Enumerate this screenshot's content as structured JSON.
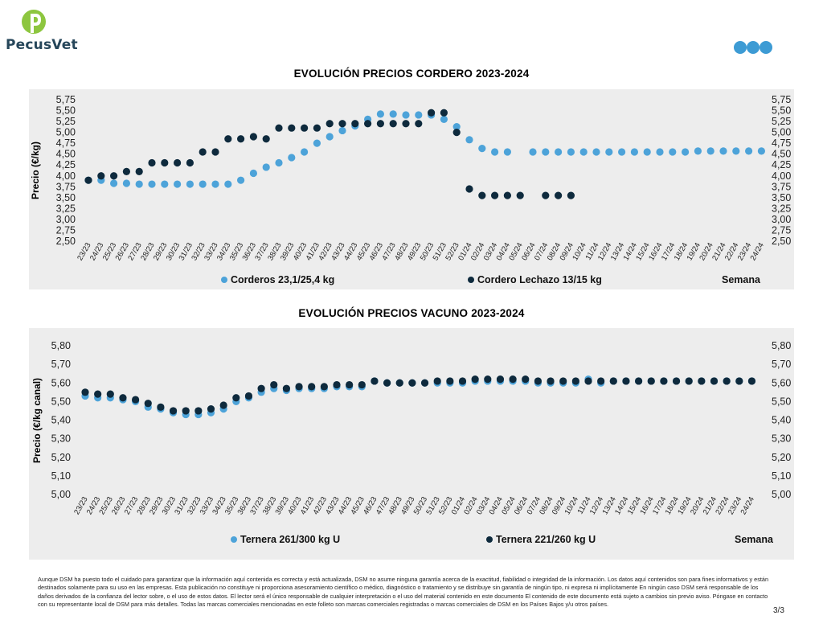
{
  "header": {
    "brand": "PecusVet",
    "colors": {
      "logo_green": "#8dc63f",
      "logo_text": "#26465a",
      "dot_blue": "#3d9bd4"
    }
  },
  "chart_data": [
    {
      "type": "scatter",
      "title": "EVOLUCIÓN PRECIOS CORDERO 2023-2024",
      "ylabel": "Precio (€/kg)",
      "xlabel": "Semana",
      "ylim": [
        2.5,
        5.75
      ],
      "yticks": [
        "5,75",
        "5,50",
        "5,25",
        "5,00",
        "4,75",
        "4,50",
        "4,25",
        "4,00",
        "3,75",
        "3,50",
        "3,25",
        "3,00",
        "2,75",
        "2,50"
      ],
      "ytick_values": [
        5.75,
        5.5,
        5.25,
        5.0,
        4.75,
        4.5,
        4.25,
        4.0,
        3.75,
        3.5,
        3.25,
        3.0,
        2.75,
        2.5
      ],
      "secondary_y_axis": true,
      "grid": false,
      "legend_position": "bottom",
      "categories": [
        "23/23",
        "24/23",
        "25/23",
        "26/23",
        "27/23",
        "28/23",
        "29/23",
        "30/23",
        "31/23",
        "32/23",
        "33/23",
        "34/23",
        "35/23",
        "36/23",
        "37/23",
        "38/23",
        "39/23",
        "40/23",
        "41/23",
        "42/23",
        "43/23",
        "44/23",
        "45/23",
        "46/23",
        "47/23",
        "48/23",
        "49/23",
        "50/23",
        "51/23",
        "52/23",
        "01/24",
        "02/24",
        "03/24",
        "04/24",
        "05/24",
        "06/24",
        "07/24",
        "08/24",
        "09/24",
        "10/24",
        "11/24",
        "12/24",
        "13/24",
        "14/24",
        "15/24",
        "16/24",
        "17/24",
        "18/24",
        "19/24",
        "20/24",
        "21/24",
        "22/24",
        "23/24",
        "24/24"
      ],
      "series": [
        {
          "name": "Corderos 23,1/25,4 kg",
          "color": "#4da3d9",
          "values": [
            3.9,
            3.9,
            3.83,
            3.83,
            3.81,
            3.81,
            3.81,
            3.81,
            3.81,
            3.81,
            3.81,
            3.81,
            3.9,
            4.06,
            4.2,
            4.3,
            4.42,
            4.55,
            4.75,
            4.9,
            5.04,
            5.15,
            5.3,
            5.42,
            5.42,
            5.4,
            5.4,
            5.4,
            5.3,
            5.13,
            4.83,
            4.63,
            4.55,
            4.55,
            null,
            4.55,
            4.55,
            4.55,
            4.55,
            4.55,
            4.55,
            4.55,
            4.55,
            4.55,
            4.55,
            4.55,
            4.55,
            4.55,
            4.57,
            4.57,
            4.57,
            4.57,
            4.57,
            4.57
          ]
        },
        {
          "name": "Cordero Lechazo 13/15 kg",
          "color": "#0e2a3d",
          "values": [
            3.9,
            4.0,
            4.0,
            4.1,
            4.1,
            4.3,
            4.3,
            4.3,
            4.3,
            4.55,
            4.55,
            4.85,
            4.85,
            4.9,
            4.85,
            5.1,
            5.1,
            5.1,
            5.1,
            5.2,
            5.2,
            5.2,
            5.2,
            5.2,
            5.2,
            5.2,
            5.2,
            5.45,
            5.45,
            5.0,
            3.7,
            3.55,
            3.55,
            3.55,
            3.55,
            null,
            3.55,
            3.55,
            3.55,
            null,
            null,
            null,
            null,
            null,
            null,
            null,
            null,
            null,
            null,
            null,
            null,
            null,
            null,
            null
          ]
        }
      ]
    },
    {
      "type": "scatter",
      "title": "EVOLUCIÓN PRECIOS VACUNO 2023-2024",
      "ylabel": "Precio (€/kg canal)",
      "xlabel": "Semana",
      "ylim": [
        5.0,
        5.8
      ],
      "yticks": [
        "5,80",
        "5,70",
        "5,60",
        "5,50",
        "5,40",
        "5,30",
        "5,20",
        "5,10",
        "5,00"
      ],
      "ytick_values": [
        5.8,
        5.7,
        5.6,
        5.5,
        5.4,
        5.3,
        5.2,
        5.1,
        5.0
      ],
      "secondary_y_axis": true,
      "grid": false,
      "legend_position": "bottom",
      "categories": [
        "23/23",
        "24/23",
        "25/23",
        "26/23",
        "27/23",
        "28/23",
        "29/23",
        "30/23",
        "31/23",
        "32/23",
        "33/23",
        "34/23",
        "35/23",
        "36/23",
        "37/23",
        "38/23",
        "39/23",
        "40/23",
        "41/23",
        "42/23",
        "43/23",
        "44/23",
        "45/23",
        "46/23",
        "47/23",
        "48/23",
        "49/23",
        "50/23",
        "51/23",
        "52/23",
        "01/24",
        "02/24",
        "03/24",
        "04/24",
        "05/24",
        "06/24",
        "07/24",
        "08/24",
        "09/24",
        "10/24",
        "11/24",
        "12/24",
        "13/24",
        "14/24",
        "15/24",
        "16/24",
        "17/24",
        "18/24",
        "19/24",
        "20/24",
        "21/24",
        "22/24",
        "23/24",
        "24/24"
      ],
      "series": [
        {
          "name": "Ternera 261/300 kg U",
          "color": "#4da3d9",
          "values": [
            5.53,
            5.52,
            5.52,
            5.51,
            5.5,
            5.47,
            5.46,
            5.44,
            5.43,
            5.43,
            5.44,
            5.46,
            5.5,
            5.52,
            5.55,
            5.57,
            5.56,
            5.57,
            5.57,
            5.57,
            5.58,
            5.58,
            5.58,
            5.61,
            5.6,
            5.6,
            5.6,
            5.6,
            5.6,
            5.6,
            5.6,
            5.61,
            5.61,
            5.61,
            5.61,
            5.61,
            5.6,
            5.6,
            5.6,
            5.6,
            5.62,
            5.6,
            5.61,
            5.61,
            5.61,
            5.61,
            5.61,
            5.61,
            5.61,
            5.61,
            5.61,
            5.61,
            5.61,
            5.61
          ]
        },
        {
          "name": "Ternera 221/260 kg U",
          "color": "#0e2a3d",
          "values": [
            5.55,
            5.54,
            5.54,
            5.52,
            5.51,
            5.49,
            5.47,
            5.45,
            5.45,
            5.45,
            5.46,
            5.48,
            5.52,
            5.53,
            5.57,
            5.59,
            5.57,
            5.58,
            5.58,
            5.58,
            5.59,
            5.59,
            5.59,
            5.61,
            5.6,
            5.6,
            5.6,
            5.6,
            5.61,
            5.61,
            5.61,
            5.62,
            5.62,
            5.62,
            5.62,
            5.62,
            5.61,
            5.61,
            5.61,
            5.61,
            5.61,
            5.61,
            5.61,
            5.61,
            5.61,
            5.61,
            5.61,
            5.61,
            5.61,
            5.61,
            5.61,
            5.61,
            5.61,
            5.61
          ]
        }
      ]
    }
  ],
  "footer": {
    "disclaimer": "Aunque DSM ha puesto todo el cuidado para garantizar que la información aquí contenida es correcta y está actualizada, DSM no asume ninguna garantía acerca de la exactitud, fiabilidad o integridad de la información. Los datos aquí contenidos son para fines informativos y están destinados solamente para su uso en las empresas. Esta publicación no constituye ni proporciona asesoramiento científico o médico, diagnóstico o tratamiento y se distribuye sin garantía de ningún tipo, ni expresa ni implícitamente En ningún caso DSM será responsable de los daños derivados de la confianza del lector sobre, o el uso de estos datos. El lector será el único responsable de cualquier interpretación o el uso del material contenido en este documento El contenido de este documento está sujeto a cambios sin previo aviso. Póngase en contacto con su representante local de DSM para más detalles. Todas las marcas comerciales mencionadas en este folleto son marcas comerciales registradas o marcas comerciales de DSM en los Países Bajos y/u otros países.",
    "page": "3/3"
  }
}
